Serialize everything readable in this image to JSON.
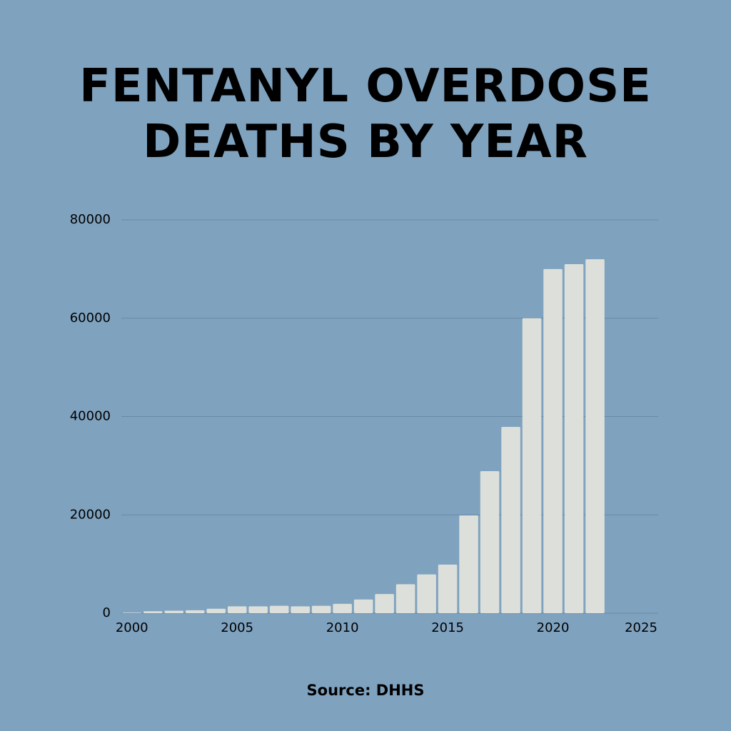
{
  "chart_data": {
    "type": "bar",
    "title": "FENTANYL OVERDOSE DEATHS BY YEAR",
    "source": "Source: DHHS",
    "x": [
      2000,
      2001,
      2002,
      2003,
      2004,
      2005,
      2006,
      2007,
      2008,
      2009,
      2010,
      2011,
      2012,
      2013,
      2014,
      2015,
      2016,
      2017,
      2018,
      2019,
      2020,
      2021,
      2022
    ],
    "values": [
      100,
      400,
      500,
      600,
      900,
      1400,
      1400,
      1500,
      1400,
      1500,
      1900,
      2800,
      3900,
      5900,
      7900,
      9900,
      19900,
      28900,
      37900,
      60000,
      70000,
      71000,
      72000
    ],
    "color": "#dde0da",
    "xlim": [
      1999.5,
      2025
    ],
    "xticks": [
      2000,
      2005,
      2010,
      2015,
      2020,
      2025
    ],
    "ylim": [
      0,
      80000
    ],
    "yticks": [
      0,
      20000,
      40000,
      60000,
      80000
    ],
    "grid": true
  }
}
